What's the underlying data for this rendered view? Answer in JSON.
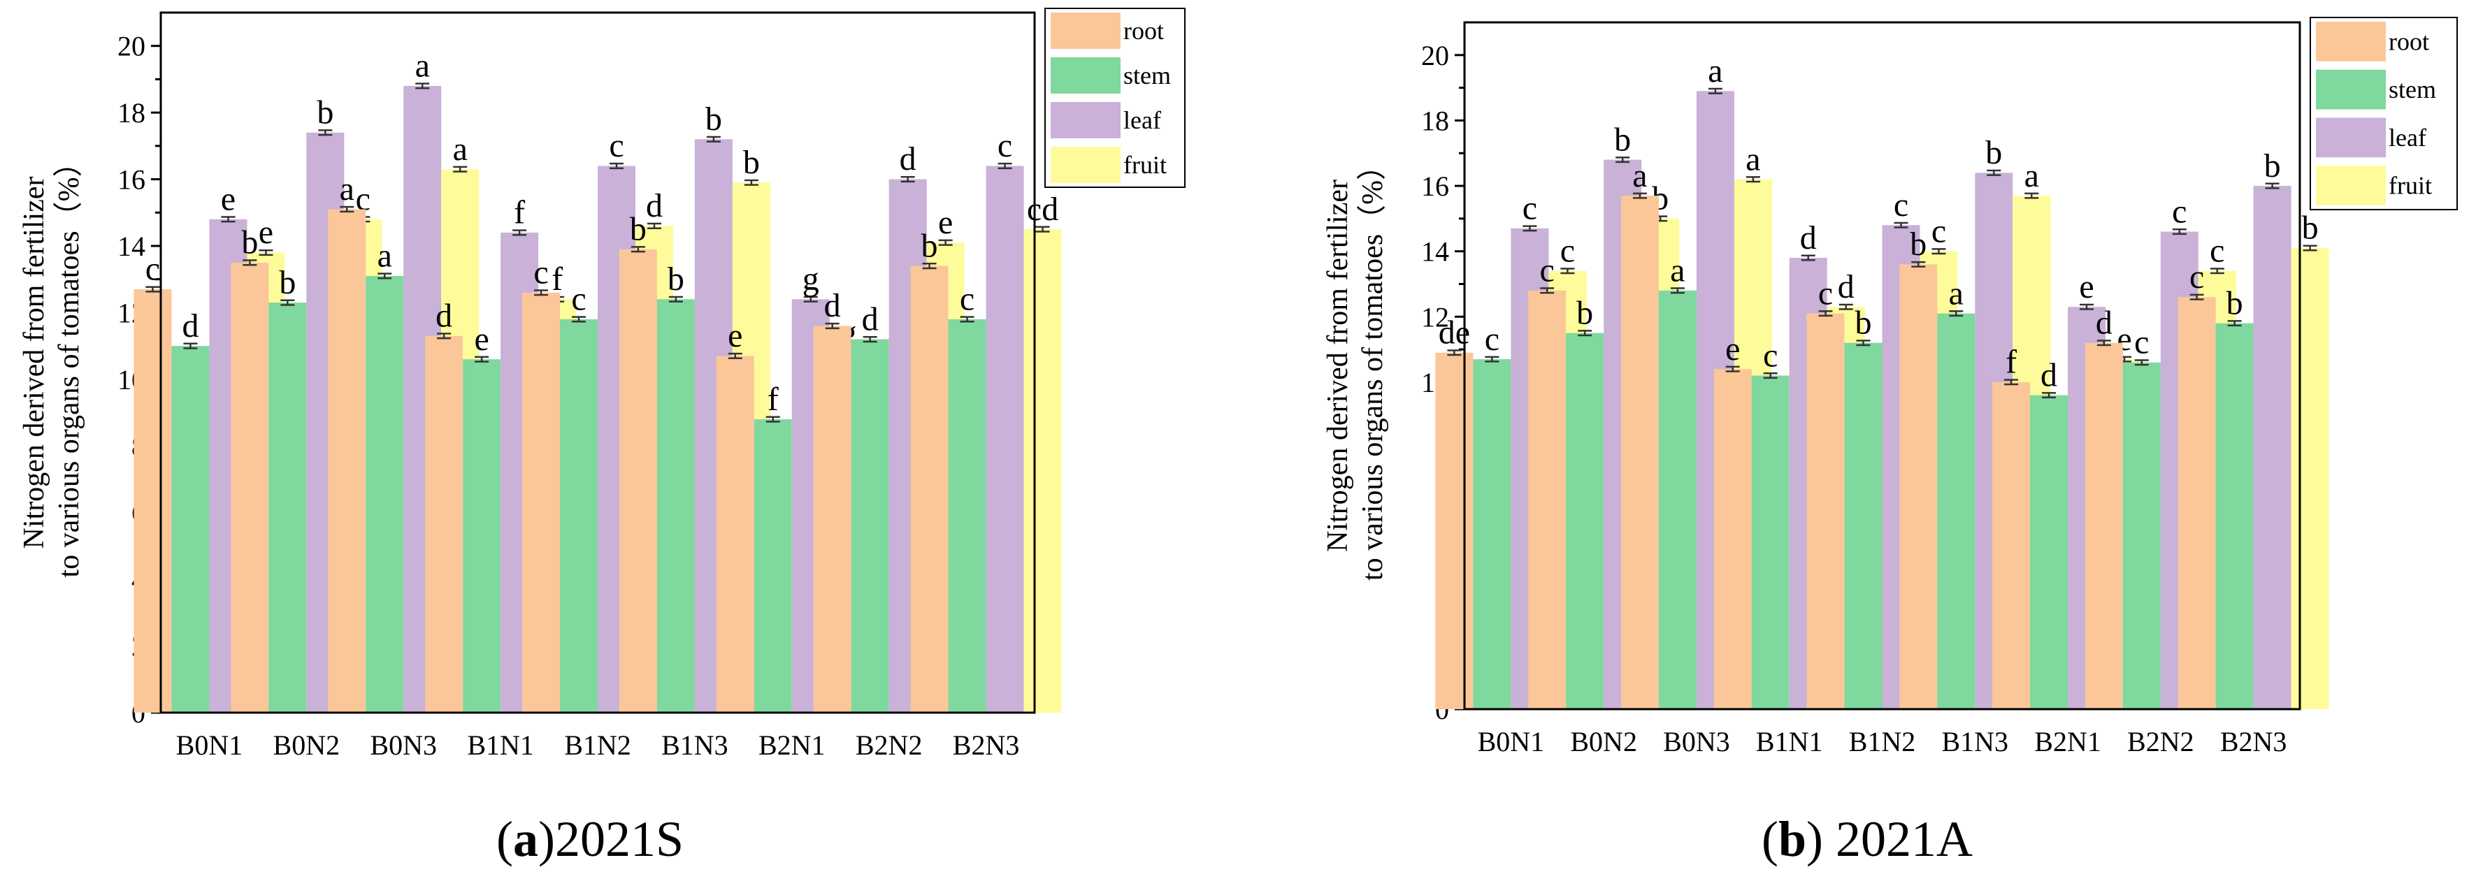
{
  "colors": {
    "root": "#FBC799",
    "stem": "#7FD89E",
    "leaf": "#C9B1D8",
    "fruit": "#FEFC9A"
  },
  "chart_data": [
    {
      "type": "bar",
      "panel_id": "a",
      "caption_rest": "2021S",
      "ylabel_lines": [
        "Nitrogen derived from fertilizer",
        "to various organs of tomatoes（%）"
      ],
      "ylim": [
        0,
        21
      ],
      "yticks": [
        0,
        2,
        4,
        6,
        8,
        10,
        12,
        14,
        16,
        18,
        20
      ],
      "legend_position": "top-right",
      "categories": [
        "B0N1",
        "B0N2",
        "B0N3",
        "B1N1",
        "B1N2",
        "B1N3",
        "B2N1",
        "B2N2",
        "B2N3"
      ],
      "series": [
        {
          "name": "root",
          "key": "root",
          "values": [
            12.7,
            13.5,
            15.1,
            11.3,
            12.6,
            13.9,
            10.7,
            11.6,
            13.4
          ],
          "letters": [
            "c",
            "b",
            "a",
            "d",
            "c",
            "b",
            "e",
            "d",
            "b"
          ]
        },
        {
          "name": "stem",
          "key": "stem",
          "values": [
            11.0,
            12.3,
            13.1,
            10.6,
            11.8,
            12.4,
            8.8,
            11.2,
            11.8
          ],
          "letters": [
            "d",
            "b",
            "a",
            "e",
            "c",
            "b",
            "f",
            "d",
            "c"
          ]
        },
        {
          "name": "leaf",
          "key": "leaf",
          "values": [
            14.8,
            17.4,
            18.8,
            14.4,
            16.4,
            17.2,
            12.4,
            16.0,
            16.4
          ],
          "letters": [
            "e",
            "b",
            "a",
            "f",
            "c",
            "b",
            "g",
            "d",
            "c"
          ]
        },
        {
          "name": "fruit",
          "key": "fruit",
          "values": [
            13.8,
            14.8,
            16.3,
            12.4,
            14.6,
            15.9,
            10.8,
            14.1,
            14.5
          ],
          "letters": [
            "e",
            "c",
            "a",
            "f",
            "d",
            "b",
            "g",
            "e",
            "cd"
          ]
        }
      ]
    },
    {
      "type": "bar",
      "panel_id": "b",
      "caption_rest": " 2021A",
      "ylabel_lines": [
        "Nitrogen derived from fertilizer",
        "to various organs of tomatoes（%）"
      ],
      "ylim": [
        0,
        21
      ],
      "yticks": [
        0,
        2,
        4,
        6,
        8,
        10,
        12,
        14,
        16,
        18,
        20
      ],
      "legend_position": "top-right",
      "categories": [
        "B0N1",
        "B0N2",
        "B0N3",
        "B1N1",
        "B1N2",
        "B1N3",
        "B2N1",
        "B2N2",
        "B2N3"
      ],
      "series": [
        {
          "name": "root",
          "key": "root",
          "values": [
            10.9,
            12.8,
            15.7,
            10.4,
            12.1,
            13.6,
            10.0,
            11.2,
            12.6
          ],
          "letters": [
            "de",
            "c",
            "a",
            "e",
            "c",
            "b",
            "f",
            "d",
            "c"
          ]
        },
        {
          "name": "stem",
          "key": "stem",
          "values": [
            10.7,
            11.5,
            12.8,
            10.2,
            11.2,
            12.1,
            9.6,
            10.6,
            11.8
          ],
          "letters": [
            "c",
            "b",
            "a",
            "c",
            "b",
            "a",
            "d",
            "c",
            "b"
          ]
        },
        {
          "name": "leaf",
          "key": "leaf",
          "values": [
            14.7,
            16.8,
            18.9,
            13.8,
            14.8,
            16.4,
            12.3,
            14.6,
            16.0
          ],
          "letters": [
            "c",
            "b",
            "a",
            "d",
            "c",
            "b",
            "e",
            "c",
            "b"
          ]
        },
        {
          "name": "fruit",
          "key": "fruit",
          "values": [
            13.4,
            15.0,
            16.2,
            12.3,
            14.0,
            15.7,
            10.7,
            13.4,
            14.1
          ],
          "letters": [
            "c",
            "b",
            "a",
            "d",
            "c",
            "a",
            "e",
            "c",
            "b"
          ]
        }
      ]
    }
  ]
}
